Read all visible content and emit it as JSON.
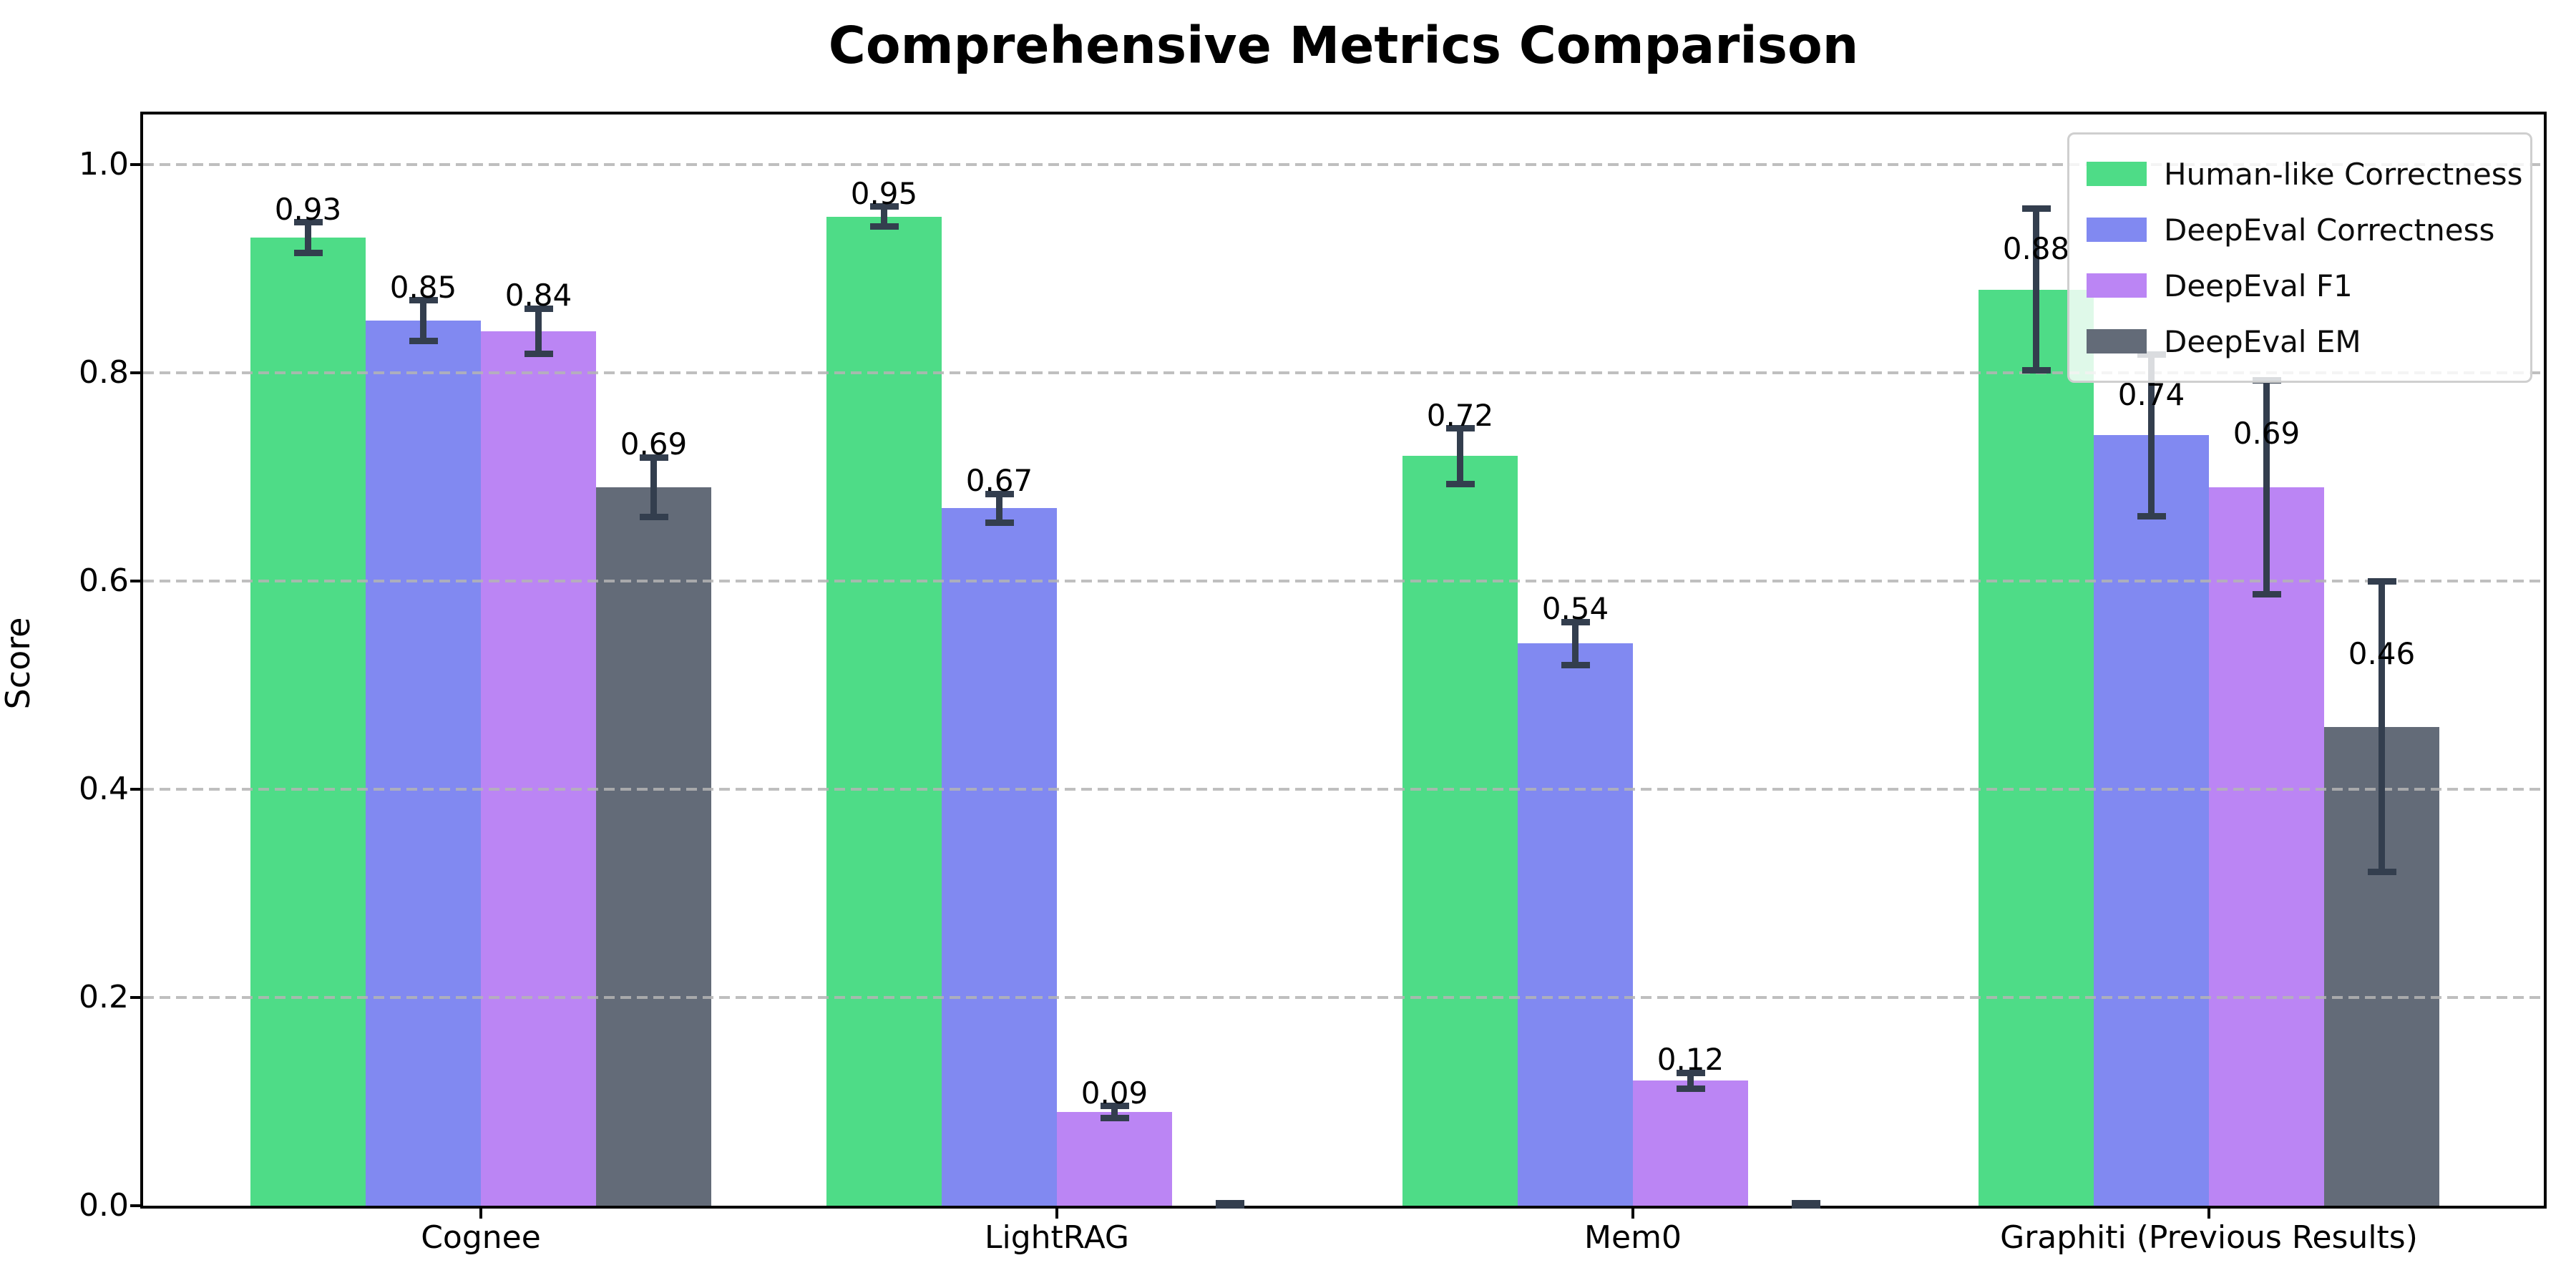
{
  "chart_data": {
    "type": "bar",
    "title": "Comprehensive Metrics Comparison",
    "ylabel": "Score",
    "categories": [
      "Cognee",
      "LightRAG",
      "Mem0",
      "Graphiti (Previous Results)"
    ],
    "ytick_labels": [
      "0.0",
      "0.2",
      "0.4",
      "0.6",
      "0.8",
      "1.0"
    ],
    "yticks": [
      0.0,
      0.2,
      0.4,
      0.6,
      0.8,
      1.0
    ],
    "ylim": [
      0,
      1.048
    ],
    "bar_width": 0.2,
    "grid": {
      "axis": "y",
      "style": "dashed",
      "color": "#c8c8c8",
      "drawn_above_bars": true
    },
    "legend": {
      "position": "upper right"
    },
    "error_bar_color": "#333e4e",
    "series": [
      {
        "name": "Human-like Correctness",
        "color": "#4edc87",
        "values": [
          0.93,
          0.95,
          0.72,
          0.88
        ],
        "errors": [
          0.015,
          0.01,
          0.027,
          0.078
        ],
        "labels": [
          "0.93",
          "0.95",
          "0.72",
          "0.88"
        ]
      },
      {
        "name": "DeepEval Correctness",
        "color": "#8189f1",
        "values": [
          0.85,
          0.67,
          0.54,
          0.74
        ],
        "errors": [
          0.02,
          0.014,
          0.021,
          0.078
        ],
        "labels": [
          "0.85",
          "0.67",
          "0.54",
          "0.74"
        ]
      },
      {
        "name": "DeepEval F1",
        "color": "#bb85f4",
        "values": [
          0.84,
          0.09,
          0.12,
          0.69
        ],
        "errors": [
          0.022,
          0.006,
          0.008,
          0.103
        ],
        "labels": [
          "0.84",
          "0.09",
          "0.12",
          "0.69"
        ]
      },
      {
        "name": "DeepEval EM",
        "color": "#636b78",
        "values": [
          0.69,
          0.0,
          0.0,
          0.46
        ],
        "errors": [
          0.029,
          0.003,
          0.003,
          0.14
        ],
        "labels": [
          "0.69",
          "",
          "",
          "0.46"
        ]
      }
    ]
  }
}
